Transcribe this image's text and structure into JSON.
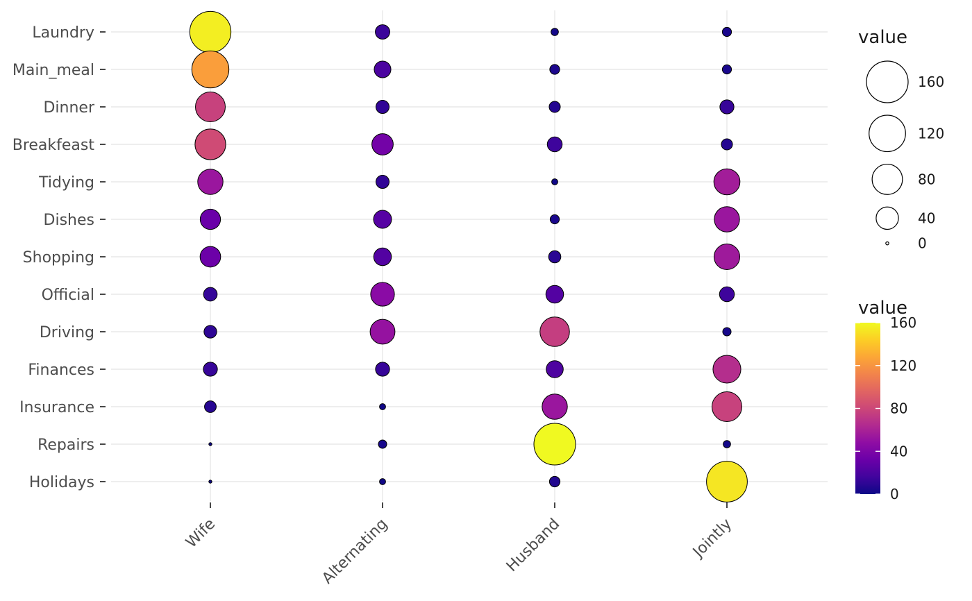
{
  "chart_data": {
    "type": "balloon",
    "title": "",
    "x_categories": [
      "Wife",
      "Alternating",
      "Husband",
      "Jointly"
    ],
    "y_categories": [
      "Laundry",
      "Main_meal",
      "Dinner",
      "Breakfeast",
      "Tidying",
      "Dishes",
      "Shopping",
      "Official",
      "Driving",
      "Finances",
      "Insurance",
      "Repairs",
      "Holidays"
    ],
    "series": [
      {
        "name": "Laundry",
        "values": [
          156,
          14,
          2,
          4
        ]
      },
      {
        "name": "Main_meal",
        "values": [
          124,
          20,
          5,
          4
        ]
      },
      {
        "name": "Dinner",
        "values": [
          77,
          11,
          7,
          13
        ]
      },
      {
        "name": "Breakfeast",
        "values": [
          82,
          36,
          15,
          7
        ]
      },
      {
        "name": "Tidying",
        "values": [
          53,
          11,
          1,
          57
        ]
      },
      {
        "name": "Dishes",
        "values": [
          32,
          24,
          4,
          53
        ]
      },
      {
        "name": "Shopping",
        "values": [
          33,
          23,
          9,
          55
        ]
      },
      {
        "name": "Official",
        "values": [
          12,
          46,
          23,
          15
        ]
      },
      {
        "name": "Driving",
        "values": [
          10,
          51,
          75,
          3
        ]
      },
      {
        "name": "Finances",
        "values": [
          13,
          13,
          21,
          66
        ]
      },
      {
        "name": "Insurance",
        "values": [
          8,
          1,
          53,
          77
        ]
      },
      {
        "name": "Repairs",
        "values": [
          0,
          3,
          160,
          2
        ]
      },
      {
        "name": "Holidays",
        "values": [
          0,
          1,
          6,
          153
        ]
      }
    ],
    "value_range": [
      0,
      160
    ],
    "size_legend": {
      "title": "value",
      "breaks": [
        160,
        120,
        80,
        40,
        0
      ]
    },
    "color_legend": {
      "title": "value",
      "breaks": [
        160,
        120,
        80,
        40,
        0
      ],
      "palette": "plasma"
    },
    "layout_hints": {
      "grid": "on",
      "legend_position": "right",
      "x_label_angle": 45
    },
    "colors": {
      "background": "#ffffff",
      "grid": "#e8e8e8",
      "axis_text": "#4d4d4d",
      "tick": "#333333",
      "legend_text": "#1a1a1a",
      "bubble_stroke": "#000000",
      "legend_circle_fill": "#ffffff",
      "plasma_stops": [
        "#0d0887",
        "#41049d",
        "#6a00a8",
        "#8f0da4",
        "#b12a90",
        "#cc4778",
        "#e16462",
        "#f2844b",
        "#fca636",
        "#fcce25",
        "#f0f921"
      ]
    }
  }
}
